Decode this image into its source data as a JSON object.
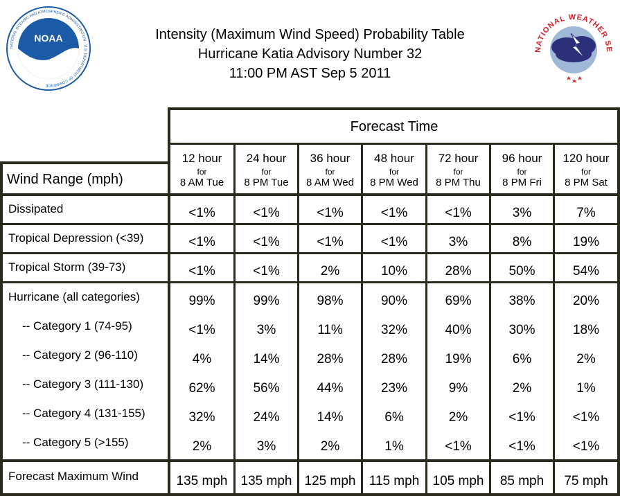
{
  "header": {
    "title_line1": "Intensity (Maximum Wind Speed) Probability Table",
    "title_line2": "Hurricane Katia Advisory Number 32",
    "title_line3": "11:00 PM AST Sep 5 2011",
    "noaa_logo_text": "NOAA",
    "noaa_ring_text": "NATIONAL OCEANIC AND ATMOSPHERIC ADMINISTRATION · U.S. DEPARTMENT OF COMMERCE",
    "nws_ring_text": "NATIONAL WEATHER SERVICE"
  },
  "table": {
    "forecast_time_label": "Forecast Time",
    "wind_range_label": "Wind Range (mph)",
    "for_word": "for",
    "columns": [
      {
        "hours": "12 hour",
        "when": "8 AM Tue"
      },
      {
        "hours": "24 hour",
        "when": "8 PM Tue"
      },
      {
        "hours": "36 hour",
        "when": "8 AM Wed"
      },
      {
        "hours": "48 hour",
        "when": "8 PM Wed"
      },
      {
        "hours": "72 hour",
        "when": "8 PM Thu"
      },
      {
        "hours": "96 hour",
        "when": "8 PM Fri"
      },
      {
        "hours": "120 hour",
        "when": "8 PM Sat"
      }
    ],
    "rows": [
      {
        "label": "Dissipated",
        "values": [
          "<1%",
          "<1%",
          "<1%",
          "<1%",
          "<1%",
          "3%",
          "7%"
        ]
      },
      {
        "label": "Tropical Depression (<39)",
        "values": [
          "<1%",
          "<1%",
          "<1%",
          "<1%",
          "3%",
          "8%",
          "19%"
        ]
      },
      {
        "label": "Tropical Storm (39-73)",
        "values": [
          "<1%",
          "<1%",
          "2%",
          "10%",
          "28%",
          "50%",
          "54%"
        ]
      },
      {
        "label": "Hurricane (all categories)",
        "values": [
          "99%",
          "99%",
          "98%",
          "90%",
          "69%",
          "38%",
          "20%"
        ]
      },
      {
        "label": "-- Category 1 (74-95)",
        "values": [
          "<1%",
          "3%",
          "11%",
          "32%",
          "40%",
          "30%",
          "18%"
        ]
      },
      {
        "label": "-- Category 2 (96-110)",
        "values": [
          "4%",
          "14%",
          "28%",
          "28%",
          "19%",
          "6%",
          "2%"
        ]
      },
      {
        "label": "-- Category 3 (111-130)",
        "values": [
          "62%",
          "56%",
          "44%",
          "23%",
          "9%",
          "2%",
          "1%"
        ]
      },
      {
        "label": "-- Category 4 (131-155)",
        "values": [
          "32%",
          "24%",
          "14%",
          "6%",
          "2%",
          "<1%",
          "<1%"
        ]
      },
      {
        "label": "-- Category 5 (>155)",
        "values": [
          "2%",
          "3%",
          "2%",
          "1%",
          "<1%",
          "<1%",
          "<1%"
        ]
      }
    ],
    "max_wind": {
      "label": "Forecast Maximum Wind",
      "values": [
        "135 mph",
        "135 mph",
        "125 mph",
        "115 mph",
        "105 mph",
        "85 mph",
        "75 mph"
      ]
    }
  },
  "colors": {
    "border": "#2a2a1d",
    "noaa_blue": "#1a5aa6",
    "nws_red": "#d2232a",
    "nws_cloud": "#2c2f7a"
  }
}
